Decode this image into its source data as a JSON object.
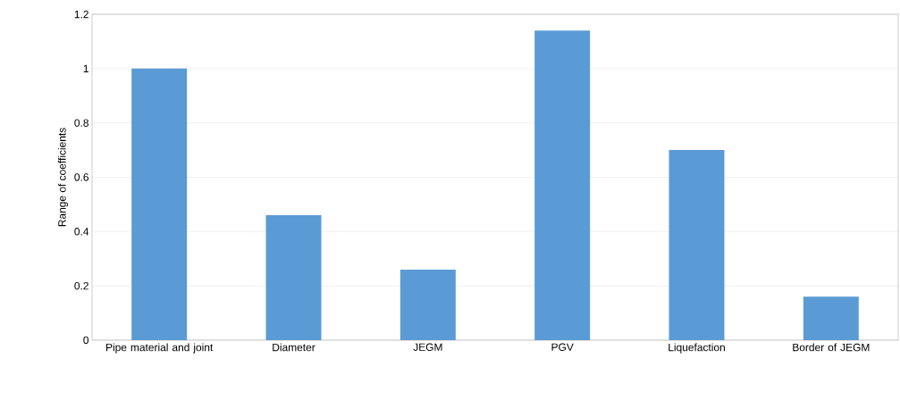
{
  "chart_data": {
    "type": "bar",
    "ylabel": "Range of coefficients",
    "categories": [
      "Pipe material and joint",
      "Diameter",
      "JEGM",
      "PGV",
      "Liquefaction",
      "Border of JEGM"
    ],
    "values": [
      1.0,
      0.46,
      0.26,
      1.14,
      0.7,
      0.16
    ],
    "color": "#5b9bd5",
    "ylim": [
      0,
      1.2
    ],
    "yticks": [
      0,
      0.2,
      0.4,
      0.6,
      0.8,
      1,
      1.2
    ],
    "grid": "y"
  }
}
